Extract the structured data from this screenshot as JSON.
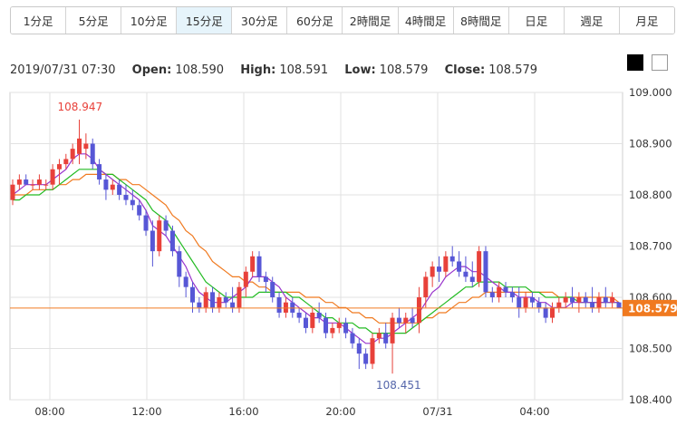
{
  "timeframe_tabs": [
    {
      "label": "1分足",
      "active": false
    },
    {
      "label": "5分足",
      "active": false
    },
    {
      "label": "10分足",
      "active": false
    },
    {
      "label": "15分足",
      "active": true
    },
    {
      "label": "30分足",
      "active": false
    },
    {
      "label": "60分足",
      "active": false
    },
    {
      "label": "2時間足",
      "active": false
    },
    {
      "label": "4時間足",
      "active": false
    },
    {
      "label": "8時間足",
      "active": false
    },
    {
      "label": "日足",
      "active": false
    },
    {
      "label": "週足",
      "active": false
    },
    {
      "label": "月足",
      "active": false
    }
  ],
  "ohlc_info": {
    "datetime": "2019/07/31 07:30",
    "open_label": "Open:",
    "open": "108.590",
    "high_label": "High:",
    "high": "108.591",
    "low_label": "Low:",
    "low": "108.579",
    "close_label": "Close:",
    "close": "108.579"
  },
  "theme_buttons": [
    "dark-theme",
    "light-theme"
  ],
  "colors": {
    "up": "#e8413a",
    "down": "#5757d6",
    "ma_short": "#9933cc",
    "ma_mid": "#22bb22",
    "ma_long": "#f07a20",
    "grid": "#e2e2e2",
    "current_price": "#f07a20"
  },
  "chart_data": {
    "type": "candlestick",
    "ylim": [
      108.4,
      109.0
    ],
    "y_ticks": [
      "109.000",
      "108.900",
      "108.800",
      "108.700",
      "108.600",
      "108.500",
      "108.400"
    ],
    "x_ticks": [
      "08:00",
      "12:00",
      "16:00",
      "20:00",
      "07/31",
      "04:00"
    ],
    "current_price": "108.579",
    "high_annotation": "108.947",
    "low_annotation": "108.451",
    "candles": [
      [
        108.79,
        108.83,
        108.78,
        108.82
      ],
      [
        108.82,
        108.84,
        108.81,
        108.83
      ],
      [
        108.83,
        108.84,
        108.82,
        108.82
      ],
      [
        108.82,
        108.83,
        108.81,
        108.82
      ],
      [
        108.82,
        108.84,
        108.81,
        108.83
      ],
      [
        108.82,
        108.83,
        108.81,
        108.82
      ],
      [
        108.82,
        108.86,
        108.81,
        108.85
      ],
      [
        108.85,
        108.87,
        108.82,
        108.86
      ],
      [
        108.86,
        108.88,
        108.85,
        108.87
      ],
      [
        108.87,
        108.9,
        108.86,
        108.89
      ],
      [
        108.88,
        108.947,
        108.86,
        108.91
      ],
      [
        108.89,
        108.92,
        108.87,
        108.9
      ],
      [
        108.9,
        108.91,
        108.85,
        108.86
      ],
      [
        108.86,
        108.87,
        108.82,
        108.83
      ],
      [
        108.83,
        108.84,
        108.79,
        108.81
      ],
      [
        108.81,
        108.83,
        108.8,
        108.82
      ],
      [
        108.82,
        108.83,
        108.79,
        108.8
      ],
      [
        108.8,
        108.82,
        108.78,
        108.79
      ],
      [
        108.79,
        108.81,
        108.77,
        108.78
      ],
      [
        108.78,
        108.79,
        108.75,
        108.76
      ],
      [
        108.76,
        108.77,
        108.72,
        108.73
      ],
      [
        108.73,
        108.75,
        108.66,
        108.69
      ],
      [
        108.69,
        108.76,
        108.68,
        108.75
      ],
      [
        108.75,
        108.76,
        108.72,
        108.73
      ],
      [
        108.73,
        108.74,
        108.68,
        108.69
      ],
      [
        108.69,
        108.7,
        108.62,
        108.64
      ],
      [
        108.64,
        108.65,
        108.6,
        108.62
      ],
      [
        108.62,
        108.63,
        108.57,
        108.59
      ],
      [
        108.59,
        108.6,
        108.57,
        108.58
      ],
      [
        108.58,
        108.62,
        108.57,
        108.61
      ],
      [
        108.61,
        108.62,
        108.57,
        108.58
      ],
      [
        108.58,
        108.61,
        108.57,
        108.6
      ],
      [
        108.6,
        108.61,
        108.58,
        108.59
      ],
      [
        108.59,
        108.62,
        108.57,
        108.58
      ],
      [
        108.58,
        108.63,
        108.57,
        108.62
      ],
      [
        108.62,
        108.66,
        108.6,
        108.65
      ],
      [
        108.65,
        108.69,
        108.64,
        108.68
      ],
      [
        108.68,
        108.69,
        108.63,
        108.64
      ],
      [
        108.64,
        108.65,
        108.61,
        108.63
      ],
      [
        108.63,
        108.64,
        108.59,
        108.6
      ],
      [
        108.6,
        108.61,
        108.56,
        108.57
      ],
      [
        108.57,
        108.6,
        108.56,
        108.59
      ],
      [
        108.59,
        108.6,
        108.56,
        108.57
      ],
      [
        108.57,
        108.58,
        108.55,
        108.56
      ],
      [
        108.56,
        108.57,
        108.53,
        108.54
      ],
      [
        108.54,
        108.58,
        108.53,
        108.57
      ],
      [
        108.57,
        108.59,
        108.55,
        108.56
      ],
      [
        108.56,
        108.57,
        108.52,
        108.53
      ],
      [
        108.53,
        108.55,
        108.52,
        108.54
      ],
      [
        108.54,
        108.56,
        108.53,
        108.55
      ],
      [
        108.55,
        108.56,
        108.52,
        108.53
      ],
      [
        108.53,
        108.54,
        108.5,
        108.51
      ],
      [
        108.51,
        108.52,
        108.46,
        108.49
      ],
      [
        108.49,
        108.5,
        108.46,
        108.47
      ],
      [
        108.47,
        108.53,
        108.46,
        108.52
      ],
      [
        108.52,
        108.54,
        108.51,
        108.53
      ],
      [
        108.53,
        108.55,
        108.5,
        108.51
      ],
      [
        108.51,
        108.57,
        108.451,
        108.56
      ],
      [
        108.56,
        108.58,
        108.54,
        108.55
      ],
      [
        108.55,
        108.57,
        108.53,
        108.56
      ],
      [
        108.56,
        108.58,
        108.54,
        108.55
      ],
      [
        108.55,
        108.62,
        108.53,
        108.6
      ],
      [
        108.6,
        108.65,
        108.58,
        108.64
      ],
      [
        108.64,
        108.67,
        108.62,
        108.66
      ],
      [
        108.66,
        108.68,
        108.63,
        108.65
      ],
      [
        108.65,
        108.69,
        108.64,
        108.68
      ],
      [
        108.68,
        108.7,
        108.66,
        108.67
      ],
      [
        108.67,
        108.69,
        108.64,
        108.65
      ],
      [
        108.65,
        108.68,
        108.63,
        108.64
      ],
      [
        108.64,
        108.67,
        108.62,
        108.63
      ],
      [
        108.63,
        108.7,
        108.62,
        108.69
      ],
      [
        108.69,
        108.7,
        108.6,
        108.61
      ],
      [
        108.61,
        108.62,
        108.59,
        108.6
      ],
      [
        108.6,
        108.63,
        108.59,
        108.62
      ],
      [
        108.62,
        108.63,
        108.6,
        108.61
      ],
      [
        108.61,
        108.62,
        108.59,
        108.6
      ],
      [
        108.6,
        108.62,
        108.56,
        108.58
      ],
      [
        108.58,
        108.61,
        108.57,
        108.6
      ],
      [
        108.6,
        108.61,
        108.58,
        108.59
      ],
      [
        108.59,
        108.6,
        108.57,
        108.58
      ],
      [
        108.58,
        108.59,
        108.55,
        108.56
      ],
      [
        108.56,
        108.59,
        108.55,
        108.58
      ],
      [
        108.58,
        108.6,
        108.57,
        108.59
      ],
      [
        108.59,
        108.61,
        108.58,
        108.6
      ],
      [
        108.6,
        108.62,
        108.58,
        108.59
      ],
      [
        108.59,
        108.61,
        108.57,
        108.6
      ],
      [
        108.6,
        108.61,
        108.58,
        108.59
      ],
      [
        108.59,
        108.62,
        108.57,
        108.58
      ],
      [
        108.58,
        108.61,
        108.57,
        108.6
      ],
      [
        108.6,
        108.62,
        108.58,
        108.59
      ],
      [
        108.59,
        108.61,
        108.58,
        108.6
      ],
      [
        108.59,
        108.591,
        108.579,
        108.579
      ]
    ],
    "ma_short": [
      108.8,
      108.81,
      108.82,
      108.82,
      108.82,
      108.82,
      108.83,
      108.84,
      108.85,
      108.87,
      108.88,
      108.88,
      108.87,
      108.85,
      108.84,
      108.83,
      108.82,
      108.81,
      108.8,
      108.79,
      108.77,
      108.74,
      108.73,
      108.72,
      108.7,
      108.68,
      108.66,
      108.63,
      108.61,
      108.6,
      108.59,
      108.59,
      108.59,
      108.6,
      108.61,
      108.62,
      108.64,
      108.64,
      108.64,
      108.63,
      108.62,
      108.6,
      108.59,
      108.58,
      108.57,
      108.56,
      108.56,
      108.55,
      108.55,
      108.55,
      108.54,
      108.53,
      108.52,
      108.51,
      108.51,
      108.52,
      108.52,
      108.53,
      108.54,
      108.55,
      108.56,
      108.57,
      108.59,
      108.61,
      108.62,
      108.64,
      108.65,
      108.66,
      108.66,
      108.65,
      108.65,
      108.64,
      108.63,
      108.62,
      108.61,
      108.61,
      108.6,
      108.6,
      108.6,
      108.59,
      108.59,
      108.58,
      108.58,
      108.58,
      108.59,
      108.59,
      108.59,
      108.59,
      108.59,
      108.59,
      108.59,
      108.59
    ],
    "ma_mid": [
      108.79,
      108.79,
      108.8,
      108.8,
      108.8,
      108.81,
      108.81,
      108.82,
      108.83,
      108.84,
      108.85,
      108.85,
      108.85,
      108.85,
      108.84,
      108.84,
      108.83,
      108.82,
      108.81,
      108.8,
      108.79,
      108.77,
      108.76,
      108.75,
      108.73,
      108.71,
      108.69,
      108.67,
      108.65,
      108.63,
      108.62,
      108.61,
      108.6,
      108.6,
      108.6,
      108.6,
      108.6,
      108.61,
      108.61,
      108.61,
      108.61,
      108.61,
      108.6,
      108.6,
      108.59,
      108.58,
      108.57,
      108.56,
      108.56,
      108.55,
      108.55,
      108.55,
      108.54,
      108.54,
      108.53,
      108.53,
      108.53,
      108.53,
      108.53,
      108.53,
      108.54,
      108.55,
      108.56,
      108.57,
      108.58,
      108.59,
      108.6,
      108.61,
      108.62,
      108.62,
      108.63,
      108.63,
      108.63,
      108.63,
      108.62,
      108.62,
      108.62,
      108.62,
      108.61,
      108.61,
      108.6,
      108.6,
      108.6,
      108.6,
      108.6,
      108.59,
      108.59,
      108.59,
      108.59,
      108.59,
      108.59,
      108.59
    ],
    "ma_long": [
      108.8,
      108.8,
      108.8,
      108.81,
      108.81,
      108.81,
      108.81,
      108.82,
      108.82,
      108.83,
      108.83,
      108.84,
      108.84,
      108.84,
      108.84,
      108.84,
      108.83,
      108.83,
      108.82,
      108.82,
      108.81,
      108.8,
      108.79,
      108.78,
      108.76,
      108.75,
      108.73,
      108.72,
      108.7,
      108.69,
      108.67,
      108.66,
      108.65,
      108.64,
      108.64,
      108.63,
      108.63,
      108.62,
      108.62,
      108.61,
      108.61,
      108.61,
      108.61,
      108.61,
      108.6,
      108.6,
      108.6,
      108.59,
      108.59,
      108.58,
      108.58,
      108.57,
      108.57,
      108.56,
      108.56,
      108.55,
      108.55,
      108.55,
      108.55,
      108.55,
      108.55,
      108.55,
      108.56,
      108.56,
      108.57,
      108.57,
      108.58,
      108.59,
      108.59,
      108.6,
      108.6,
      108.61,
      108.61,
      108.61,
      108.61,
      108.61,
      108.61,
      108.61,
      108.61,
      108.61,
      108.61,
      108.61,
      108.6,
      108.6,
      108.6,
      108.6,
      108.6,
      108.6,
      108.6,
      108.6,
      108.6,
      108.59
    ]
  }
}
